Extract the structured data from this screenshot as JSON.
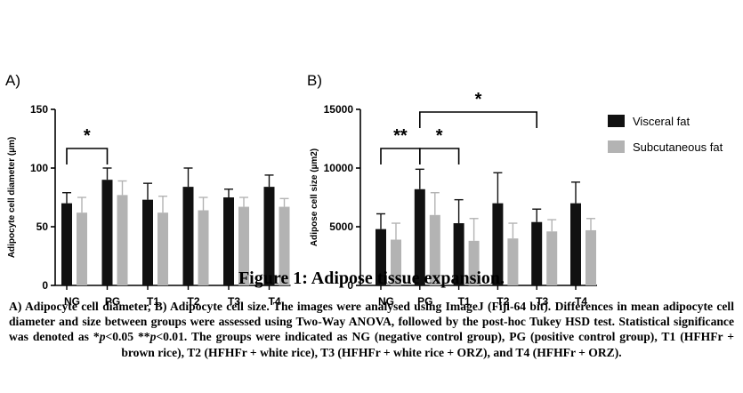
{
  "colors": {
    "visceral": "#111111",
    "subcutaneous": "#b3b3b3"
  },
  "chart_data": [
    {
      "type": "bar",
      "panel_label": "A)",
      "title": "",
      "ylabel": "Adipocyte cell diameter (µm)",
      "xlabel": "",
      "ylim": [
        0,
        150
      ],
      "yticks": [
        0,
        50,
        100,
        150
      ],
      "categories": [
        "NG",
        "PG",
        "T1",
        "T2",
        "T3",
        "T4"
      ],
      "grid": false,
      "series": [
        {
          "name": "Visceral fat",
          "values": [
            70,
            90,
            73,
            84,
            75,
            84
          ],
          "errors": [
            9,
            10,
            14,
            16,
            7,
            10
          ]
        },
        {
          "name": "Subcutaneous fat",
          "values": [
            62,
            77,
            62,
            64,
            67,
            67
          ],
          "errors": [
            13,
            12,
            14,
            11,
            8,
            7
          ]
        }
      ],
      "significance": [
        {
          "from": 0,
          "to": 1,
          "label": "*"
        }
      ]
    },
    {
      "type": "bar",
      "panel_label": "B)",
      "title": "",
      "ylabel": "Adipose cell size (µm2)",
      "xlabel": "",
      "ylim": [
        0,
        15000
      ],
      "yticks": [
        0,
        5000,
        10000,
        15000
      ],
      "categories": [
        "NG",
        "PG",
        "T1",
        "T2",
        "T3",
        "T4"
      ],
      "grid": false,
      "legend": "right",
      "series": [
        {
          "name": "Visceral fat",
          "values": [
            4800,
            8200,
            5300,
            7000,
            5400,
            7000
          ],
          "errors": [
            1300,
            1700,
            2000,
            2600,
            1100,
            1800
          ]
        },
        {
          "name": "Subcutaneous fat",
          "values": [
            3900,
            6000,
            3800,
            4000,
            4600,
            4700
          ],
          "errors": [
            1400,
            1900,
            1900,
            1300,
            1000,
            1000
          ]
        }
      ],
      "significance": [
        {
          "from": 0,
          "to": 1,
          "label": "**"
        },
        {
          "from": 1,
          "to": 2,
          "label": "*"
        },
        {
          "from": 1,
          "to": 4,
          "label": "*"
        }
      ]
    }
  ],
  "caption": {
    "title": "Figure 1: Adipose tissue expansion.",
    "part1": "A) Adipocyte cell diameter, B) Adipocyte cell size. The images were analysed using ImageJ (Fiji-64 bit). Differences in mean adipocyte cell diameter and size between groups were assessed using Two-Way ANOVA, followed by the post-hoc Tukey HSD test. Statistical significance was denoted as *",
    "p1": "p",
    "part2": "<0.05 **",
    "p2": "p",
    "part3": "<0.01. The groups were indicated as NG (negative control group), PG (positive control group), T1 (HFHFr + brown rice), T2 (HFHFr + white rice), T3 (HFHFr + white rice + ORZ), and T4 (HFHFr + ORZ)."
  }
}
